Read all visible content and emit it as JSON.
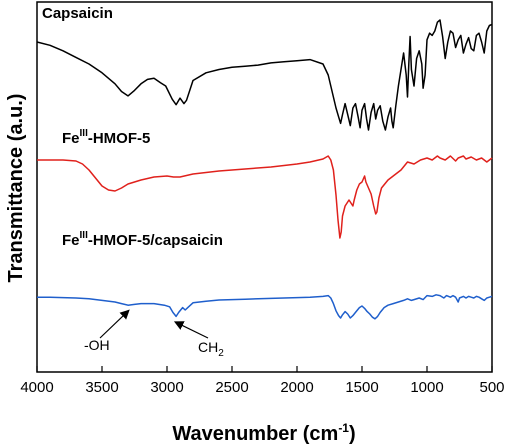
{
  "chart_data": {
    "type": "line",
    "xlabel": "Wavenumber (cm",
    "xlabel_sup": "-1",
    "xlabel_close": ")",
    "ylabel": "Transmittance (a.u.)",
    "xlim": [
      4000,
      500
    ],
    "xaxis_reversed": true,
    "xticks": [
      4000,
      3500,
      3000,
      2500,
      2000,
      1500,
      1000,
      500
    ],
    "yticks_shown": false,
    "grid": false,
    "series": [
      {
        "name": "Capsaicin",
        "name_parts": [
          "Capsaicin"
        ],
        "color": "#000000",
        "offset": 2,
        "points": [
          [
            4000,
            0.8
          ],
          [
            3900,
            0.77
          ],
          [
            3800,
            0.72
          ],
          [
            3700,
            0.66
          ],
          [
            3600,
            0.6
          ],
          [
            3500,
            0.52
          ],
          [
            3400,
            0.42
          ],
          [
            3350,
            0.35
          ],
          [
            3300,
            0.31
          ],
          [
            3250,
            0.36
          ],
          [
            3200,
            0.42
          ],
          [
            3150,
            0.46
          ],
          [
            3100,
            0.47
          ],
          [
            3050,
            0.43
          ],
          [
            3010,
            0.4
          ],
          [
            2960,
            0.28
          ],
          [
            2930,
            0.23
          ],
          [
            2900,
            0.29
          ],
          [
            2870,
            0.24
          ],
          [
            2850,
            0.27
          ],
          [
            2800,
            0.45
          ],
          [
            2700,
            0.52
          ],
          [
            2600,
            0.55
          ],
          [
            2500,
            0.57
          ],
          [
            2400,
            0.58
          ],
          [
            2300,
            0.59
          ],
          [
            2200,
            0.61
          ],
          [
            2100,
            0.62
          ],
          [
            2000,
            0.63
          ],
          [
            1900,
            0.64
          ],
          [
            1800,
            0.6
          ],
          [
            1760,
            0.5
          ],
          [
            1740,
            0.4
          ],
          [
            1720,
            0.3
          ],
          [
            1700,
            0.2
          ],
          [
            1680,
            0.12
          ],
          [
            1665,
            0.06
          ],
          [
            1650,
            0.14
          ],
          [
            1630,
            0.24
          ],
          [
            1610,
            0.14
          ],
          [
            1590,
            0.04
          ],
          [
            1570,
            0.2
          ],
          [
            1550,
            0.24
          ],
          [
            1530,
            0.12
          ],
          [
            1515,
            0.02
          ],
          [
            1500,
            0.18
          ],
          [
            1480,
            0.24
          ],
          [
            1465,
            0.1
          ],
          [
            1450,
            0.0
          ],
          [
            1430,
            0.16
          ],
          [
            1410,
            0.24
          ],
          [
            1395,
            0.1
          ],
          [
            1380,
            0.18
          ],
          [
            1360,
            0.22
          ],
          [
            1340,
            0.08
          ],
          [
            1320,
            0.0
          ],
          [
            1300,
            0.12
          ],
          [
            1280,
            0.2
          ],
          [
            1270,
            0.08
          ],
          [
            1260,
            0.02
          ],
          [
            1240,
            0.22
          ],
          [
            1220,
            0.4
          ],
          [
            1200,
            0.55
          ],
          [
            1180,
            0.7
          ],
          [
            1160,
            0.5
          ],
          [
            1150,
            0.3
          ],
          [
            1140,
            0.6
          ],
          [
            1130,
            0.85
          ],
          [
            1120,
            0.55
          ],
          [
            1100,
            0.4
          ],
          [
            1080,
            0.65
          ],
          [
            1060,
            0.72
          ],
          [
            1040,
            0.6
          ],
          [
            1030,
            0.38
          ],
          [
            1015,
            0.5
          ],
          [
            1000,
            0.82
          ],
          [
            980,
            0.88
          ],
          [
            960,
            0.86
          ],
          [
            940,
            0.9
          ],
          [
            920,
            0.98
          ],
          [
            900,
            1.0
          ],
          [
            880,
            0.85
          ],
          [
            860,
            0.65
          ],
          [
            840,
            0.8
          ],
          [
            820,
            0.9
          ],
          [
            800,
            0.88
          ],
          [
            780,
            0.75
          ],
          [
            760,
            0.82
          ],
          [
            740,
            0.86
          ],
          [
            720,
            0.7
          ],
          [
            700,
            0.78
          ],
          [
            680,
            0.84
          ],
          [
            660,
            0.74
          ],
          [
            640,
            0.72
          ],
          [
            620,
            0.86
          ],
          [
            600,
            0.88
          ],
          [
            580,
            0.8
          ],
          [
            560,
            0.7
          ],
          [
            540,
            0.9
          ],
          [
            520,
            0.95
          ],
          [
            500,
            0.96
          ]
        ]
      },
      {
        "name": "Fe(III)-HMOF-5",
        "name_parts": [
          "Fe",
          "III",
          "-HMOF-5"
        ],
        "color": "#e0211c",
        "offset": 1,
        "points": [
          [
            4000,
            0.9
          ],
          [
            3900,
            0.9
          ],
          [
            3800,
            0.9
          ],
          [
            3700,
            0.89
          ],
          [
            3650,
            0.86
          ],
          [
            3600,
            0.8
          ],
          [
            3550,
            0.72
          ],
          [
            3500,
            0.64
          ],
          [
            3450,
            0.6
          ],
          [
            3400,
            0.59
          ],
          [
            3350,
            0.62
          ],
          [
            3300,
            0.66
          ],
          [
            3200,
            0.7
          ],
          [
            3100,
            0.73
          ],
          [
            3000,
            0.74
          ],
          [
            2950,
            0.73
          ],
          [
            2900,
            0.73
          ],
          [
            2800,
            0.76
          ],
          [
            2600,
            0.79
          ],
          [
            2400,
            0.81
          ],
          [
            2200,
            0.83
          ],
          [
            2000,
            0.86
          ],
          [
            1900,
            0.88
          ],
          [
            1800,
            0.91
          ],
          [
            1760,
            0.94
          ],
          [
            1740,
            0.9
          ],
          [
            1720,
            0.8
          ],
          [
            1700,
            0.55
          ],
          [
            1685,
            0.3
          ],
          [
            1670,
            0.12
          ],
          [
            1660,
            0.18
          ],
          [
            1650,
            0.34
          ],
          [
            1630,
            0.44
          ],
          [
            1600,
            0.5
          ],
          [
            1570,
            0.44
          ],
          [
            1560,
            0.5
          ],
          [
            1540,
            0.6
          ],
          [
            1520,
            0.66
          ],
          [
            1500,
            0.68
          ],
          [
            1480,
            0.74
          ],
          [
            1470,
            0.68
          ],
          [
            1450,
            0.62
          ],
          [
            1430,
            0.56
          ],
          [
            1410,
            0.44
          ],
          [
            1395,
            0.36
          ],
          [
            1385,
            0.38
          ],
          [
            1370,
            0.52
          ],
          [
            1350,
            0.62
          ],
          [
            1300,
            0.7
          ],
          [
            1260,
            0.74
          ],
          [
            1200,
            0.8
          ],
          [
            1150,
            0.88
          ],
          [
            1100,
            0.86
          ],
          [
            1050,
            0.9
          ],
          [
            1000,
            0.92
          ],
          [
            960,
            0.9
          ],
          [
            920,
            0.94
          ],
          [
            900,
            0.92
          ],
          [
            860,
            0.9
          ],
          [
            820,
            0.94
          ],
          [
            780,
            0.89
          ],
          [
            760,
            0.92
          ],
          [
            720,
            0.94
          ],
          [
            700,
            0.91
          ],
          [
            660,
            0.93
          ],
          [
            620,
            0.9
          ],
          [
            580,
            0.92
          ],
          [
            540,
            0.88
          ],
          [
            500,
            0.92
          ]
        ]
      },
      {
        "name": "Fe(III)-HMOF-5/capsaicin",
        "name_parts": [
          "Fe",
          "III",
          "-HMOF-5/capsaicin"
        ],
        "color": "#1f5fcc",
        "offset": 0,
        "points": [
          [
            4000,
            0.82
          ],
          [
            3900,
            0.82
          ],
          [
            3800,
            0.81
          ],
          [
            3700,
            0.8
          ],
          [
            3600,
            0.78
          ],
          [
            3500,
            0.74
          ],
          [
            3400,
            0.7
          ],
          [
            3350,
            0.66
          ],
          [
            3300,
            0.62
          ],
          [
            3250,
            0.64
          ],
          [
            3200,
            0.66
          ],
          [
            3100,
            0.66
          ],
          [
            3020,
            0.62
          ],
          [
            2980,
            0.58
          ],
          [
            2955,
            0.44
          ],
          [
            2930,
            0.34
          ],
          [
            2910,
            0.44
          ],
          [
            2880,
            0.56
          ],
          [
            2860,
            0.5
          ],
          [
            2840,
            0.56
          ],
          [
            2800,
            0.68
          ],
          [
            2700,
            0.72
          ],
          [
            2600,
            0.75
          ],
          [
            2400,
            0.77
          ],
          [
            2200,
            0.79
          ],
          [
            2000,
            0.81
          ],
          [
            1900,
            0.82
          ],
          [
            1800,
            0.84
          ],
          [
            1760,
            0.86
          ],
          [
            1740,
            0.8
          ],
          [
            1720,
            0.66
          ],
          [
            1700,
            0.48
          ],
          [
            1680,
            0.36
          ],
          [
            1665,
            0.3
          ],
          [
            1650,
            0.38
          ],
          [
            1630,
            0.46
          ],
          [
            1610,
            0.4
          ],
          [
            1590,
            0.3
          ],
          [
            1570,
            0.36
          ],
          [
            1550,
            0.44
          ],
          [
            1520,
            0.56
          ],
          [
            1500,
            0.6
          ],
          [
            1480,
            0.54
          ],
          [
            1460,
            0.46
          ],
          [
            1440,
            0.4
          ],
          [
            1420,
            0.32
          ],
          [
            1400,
            0.28
          ],
          [
            1380,
            0.34
          ],
          [
            1360,
            0.44
          ],
          [
            1330,
            0.56
          ],
          [
            1300,
            0.62
          ],
          [
            1260,
            0.66
          ],
          [
            1220,
            0.7
          ],
          [
            1180,
            0.74
          ],
          [
            1150,
            0.78
          ],
          [
            1120,
            0.74
          ],
          [
            1100,
            0.76
          ],
          [
            1060,
            0.8
          ],
          [
            1030,
            0.76
          ],
          [
            1000,
            0.86
          ],
          [
            960,
            0.84
          ],
          [
            930,
            0.88
          ],
          [
            900,
            0.86
          ],
          [
            870,
            0.8
          ],
          [
            850,
            0.86
          ],
          [
            820,
            0.82
          ],
          [
            800,
            0.86
          ],
          [
            780,
            0.82
          ],
          [
            760,
            0.7
          ],
          [
            750,
            0.8
          ],
          [
            720,
            0.84
          ],
          [
            700,
            0.8
          ],
          [
            680,
            0.84
          ],
          [
            660,
            0.82
          ],
          [
            640,
            0.8
          ],
          [
            620,
            0.84
          ],
          [
            600,
            0.82
          ],
          [
            580,
            0.78
          ],
          [
            560,
            0.74
          ],
          [
            540,
            0.8
          ],
          [
            520,
            0.82
          ],
          [
            500,
            0.84
          ]
        ]
      }
    ],
    "annotations": [
      {
        "text": "-OH",
        "target_x": 3300,
        "series": 2
      },
      {
        "text": "CH",
        "sub": "2",
        "target_x": 2930,
        "series": 2
      }
    ]
  }
}
